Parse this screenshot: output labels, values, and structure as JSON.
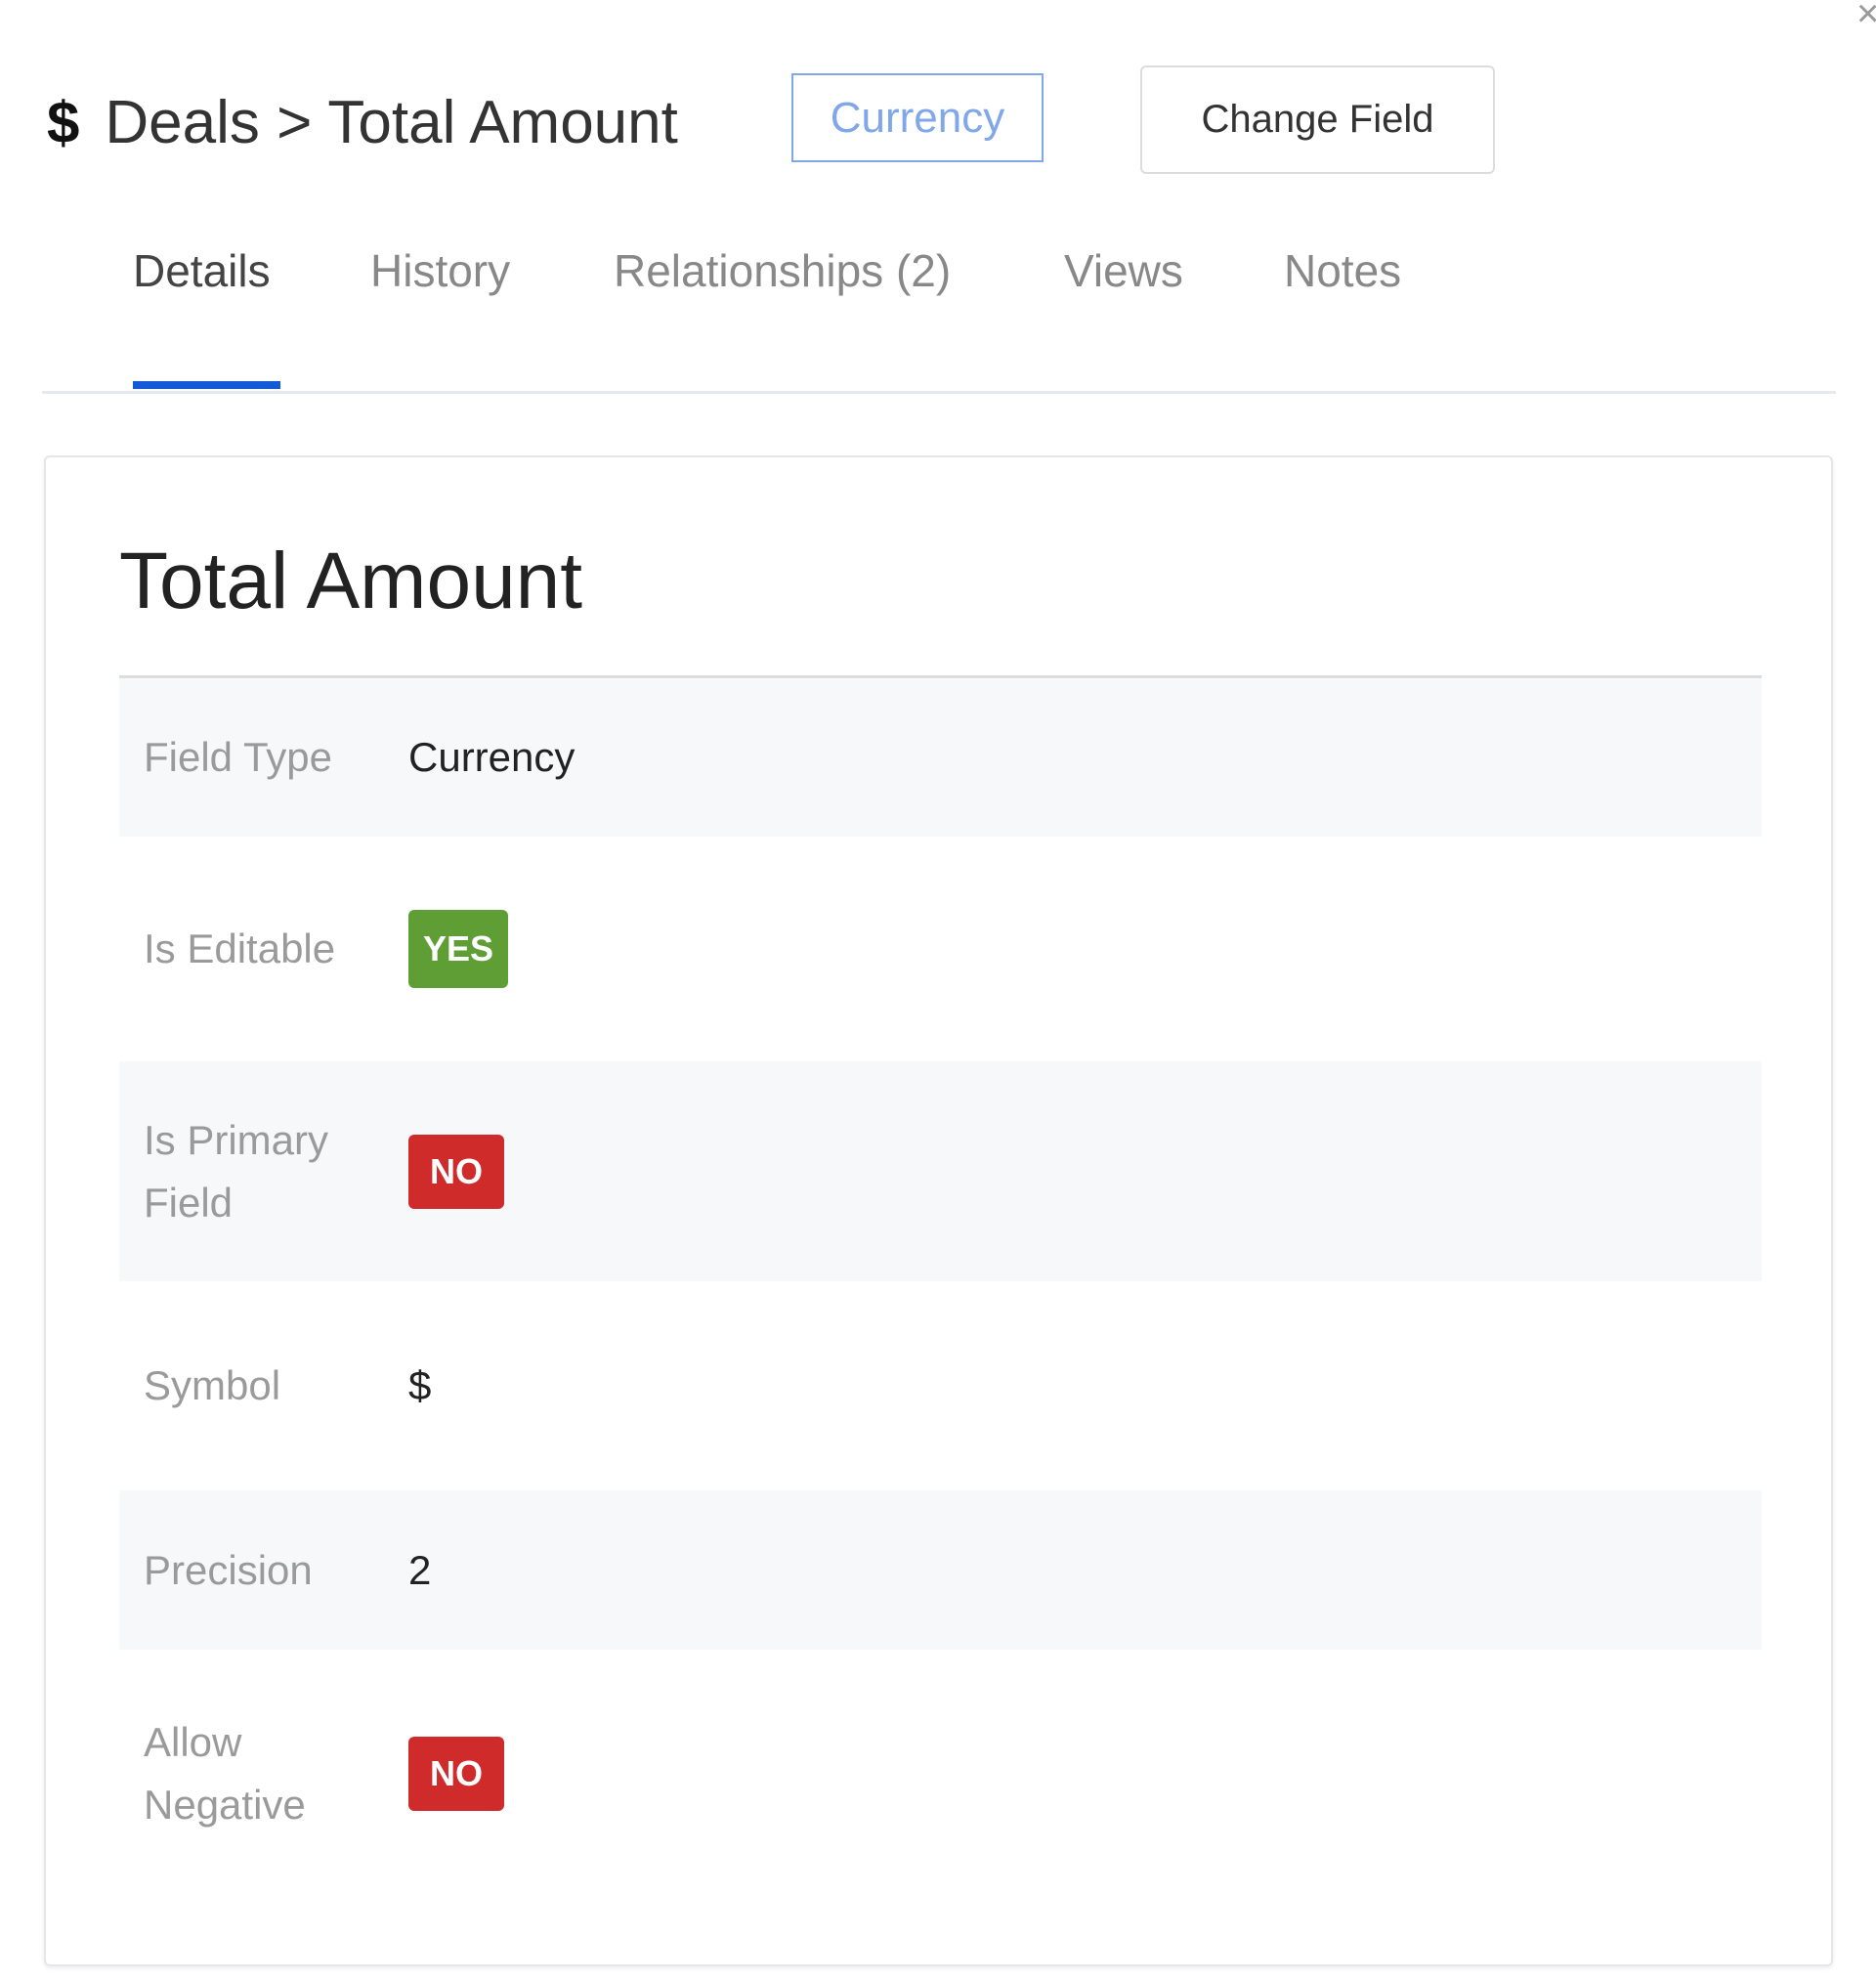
{
  "header": {
    "icon": "dollar-icon",
    "breadcrumb": "Deals > Total Amount",
    "type_badge": "Currency",
    "change_field_label": "Change Field"
  },
  "tabs": [
    {
      "label": "Details",
      "active": true
    },
    {
      "label": "History"
    },
    {
      "label": "Relationships (2)"
    },
    {
      "label": "Views"
    },
    {
      "label": "Notes"
    }
  ],
  "card": {
    "title": "Total Amount",
    "rows": [
      {
        "label": "Field Type",
        "value": "Currency"
      },
      {
        "label": "Is Editable",
        "value": "YES"
      },
      {
        "label": "Is Primary Field",
        "value": "NO"
      },
      {
        "label": "Symbol",
        "value": "$"
      },
      {
        "label": "Precision",
        "value": "2"
      },
      {
        "label": "Allow Negative",
        "value": "NO"
      }
    ]
  },
  "colors": {
    "accent": "#1459d6",
    "yes": "#5f9e35",
    "no": "#d02b2b",
    "badge": "#7fa7ea"
  }
}
